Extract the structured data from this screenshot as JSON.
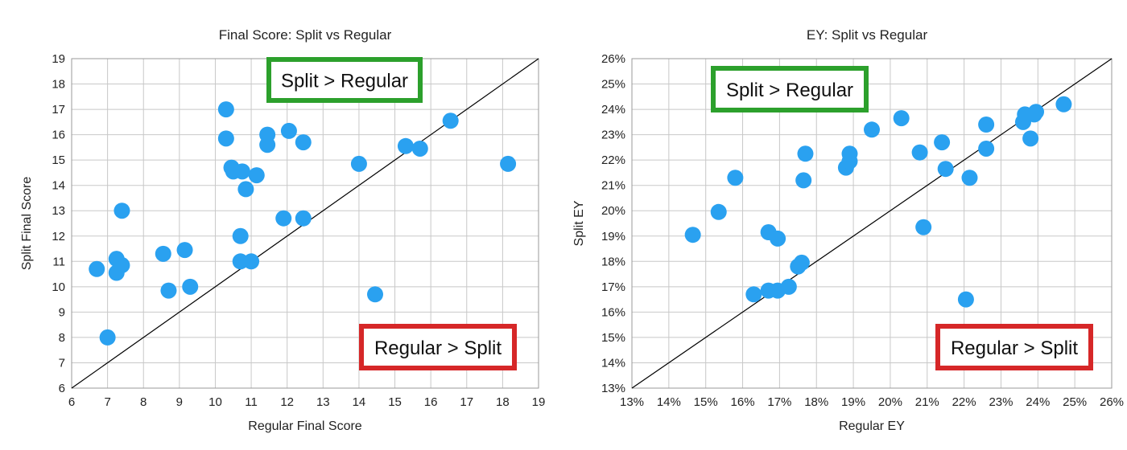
{
  "chart_data": [
    {
      "type": "scatter",
      "title": "Final Score: Split vs Regular",
      "xlabel": "Regular Final Score",
      "ylabel": "Split Final Score",
      "xlim": [
        6,
        19
      ],
      "ylim": [
        6,
        19
      ],
      "xticks": [
        "6",
        "7",
        "8",
        "9",
        "10",
        "11",
        "12",
        "13",
        "14",
        "15",
        "16",
        "17",
        "18",
        "19"
      ],
      "yticks": [
        "6",
        "7",
        "8",
        "9",
        "10",
        "11",
        "12",
        "13",
        "14",
        "15",
        "16",
        "17",
        "18",
        "19"
      ],
      "grid": true,
      "reference_line": "y = x",
      "marker_color": "#2aa1f0",
      "annotations": [
        {
          "text": "Split > Regular",
          "color": "#2ca02c",
          "region": "upper-left"
        },
        {
          "text": "Regular > Split",
          "color": "#d62728",
          "region": "lower-right"
        }
      ],
      "points": [
        {
          "x": 6.7,
          "y": 10.7
        },
        {
          "x": 7.0,
          "y": 8.0
        },
        {
          "x": 7.25,
          "y": 11.1
        },
        {
          "x": 7.25,
          "y": 10.55
        },
        {
          "x": 7.4,
          "y": 10.85
        },
        {
          "x": 7.4,
          "y": 13.0
        },
        {
          "x": 8.55,
          "y": 11.3
        },
        {
          "x": 8.7,
          "y": 9.85
        },
        {
          "x": 9.15,
          "y": 11.45
        },
        {
          "x": 9.3,
          "y": 10.0
        },
        {
          "x": 10.3,
          "y": 17.0
        },
        {
          "x": 10.3,
          "y": 15.85
        },
        {
          "x": 10.45,
          "y": 14.7
        },
        {
          "x": 10.5,
          "y": 14.55
        },
        {
          "x": 10.7,
          "y": 12.0
        },
        {
          "x": 10.7,
          "y": 11.0
        },
        {
          "x": 10.75,
          "y": 14.55
        },
        {
          "x": 10.85,
          "y": 13.85
        },
        {
          "x": 11.0,
          "y": 11.0
        },
        {
          "x": 11.15,
          "y": 14.4
        },
        {
          "x": 11.45,
          "y": 16.0
        },
        {
          "x": 11.45,
          "y": 15.6
        },
        {
          "x": 11.9,
          "y": 12.7
        },
        {
          "x": 12.05,
          "y": 16.15
        },
        {
          "x": 12.45,
          "y": 15.7
        },
        {
          "x": 12.45,
          "y": 12.7
        },
        {
          "x": 14.0,
          "y": 14.85
        },
        {
          "x": 14.45,
          "y": 9.7
        },
        {
          "x": 15.3,
          "y": 15.55
        },
        {
          "x": 15.7,
          "y": 15.45
        },
        {
          "x": 16.55,
          "y": 16.55
        },
        {
          "x": 18.15,
          "y": 14.85
        }
      ]
    },
    {
      "type": "scatter",
      "title": "EY: Split vs Regular",
      "xlabel": "Regular EY",
      "ylabel": "Split EY",
      "xlim": [
        13,
        26
      ],
      "ylim": [
        13,
        26
      ],
      "unit": "%",
      "xticks": [
        "13%",
        "14%",
        "15%",
        "16%",
        "17%",
        "18%",
        "19%",
        "20%",
        "21%",
        "22%",
        "23%",
        "24%",
        "25%",
        "26%"
      ],
      "yticks": [
        "13%",
        "14%",
        "15%",
        "16%",
        "17%",
        "18%",
        "19%",
        "20%",
        "21%",
        "22%",
        "23%",
        "24%",
        "25%",
        "26%"
      ],
      "grid": true,
      "reference_line": "y = x",
      "marker_color": "#2aa1f0",
      "annotations": [
        {
          "text": "Split > Regular",
          "color": "#2ca02c",
          "region": "upper-left"
        },
        {
          "text": "Regular > Split",
          "color": "#d62728",
          "region": "lower-right"
        }
      ],
      "points": [
        {
          "x": 14.65,
          "y": 19.05
        },
        {
          "x": 15.35,
          "y": 19.95
        },
        {
          "x": 15.8,
          "y": 21.3
        },
        {
          "x": 16.3,
          "y": 16.7
        },
        {
          "x": 16.7,
          "y": 16.85
        },
        {
          "x": 16.7,
          "y": 19.15
        },
        {
          "x": 16.95,
          "y": 16.85
        },
        {
          "x": 16.95,
          "y": 18.9
        },
        {
          "x": 17.25,
          "y": 17.0
        },
        {
          "x": 17.5,
          "y": 17.8
        },
        {
          "x": 17.6,
          "y": 17.95
        },
        {
          "x": 17.65,
          "y": 21.2
        },
        {
          "x": 17.7,
          "y": 22.25
        },
        {
          "x": 18.8,
          "y": 21.7
        },
        {
          "x": 18.9,
          "y": 21.95
        },
        {
          "x": 18.9,
          "y": 22.25
        },
        {
          "x": 19.5,
          "y": 23.2
        },
        {
          "x": 20.3,
          "y": 23.65
        },
        {
          "x": 20.8,
          "y": 22.3
        },
        {
          "x": 20.9,
          "y": 19.35
        },
        {
          "x": 21.4,
          "y": 22.7
        },
        {
          "x": 21.5,
          "y": 21.65
        },
        {
          "x": 22.05,
          "y": 16.5
        },
        {
          "x": 22.15,
          "y": 21.3
        },
        {
          "x": 22.6,
          "y": 22.45
        },
        {
          "x": 22.6,
          "y": 23.4
        },
        {
          "x": 23.6,
          "y": 23.5
        },
        {
          "x": 23.65,
          "y": 23.8
        },
        {
          "x": 23.8,
          "y": 22.85
        },
        {
          "x": 23.9,
          "y": 23.8
        },
        {
          "x": 23.95,
          "y": 23.9
        },
        {
          "x": 24.7,
          "y": 24.2
        }
      ]
    }
  ]
}
